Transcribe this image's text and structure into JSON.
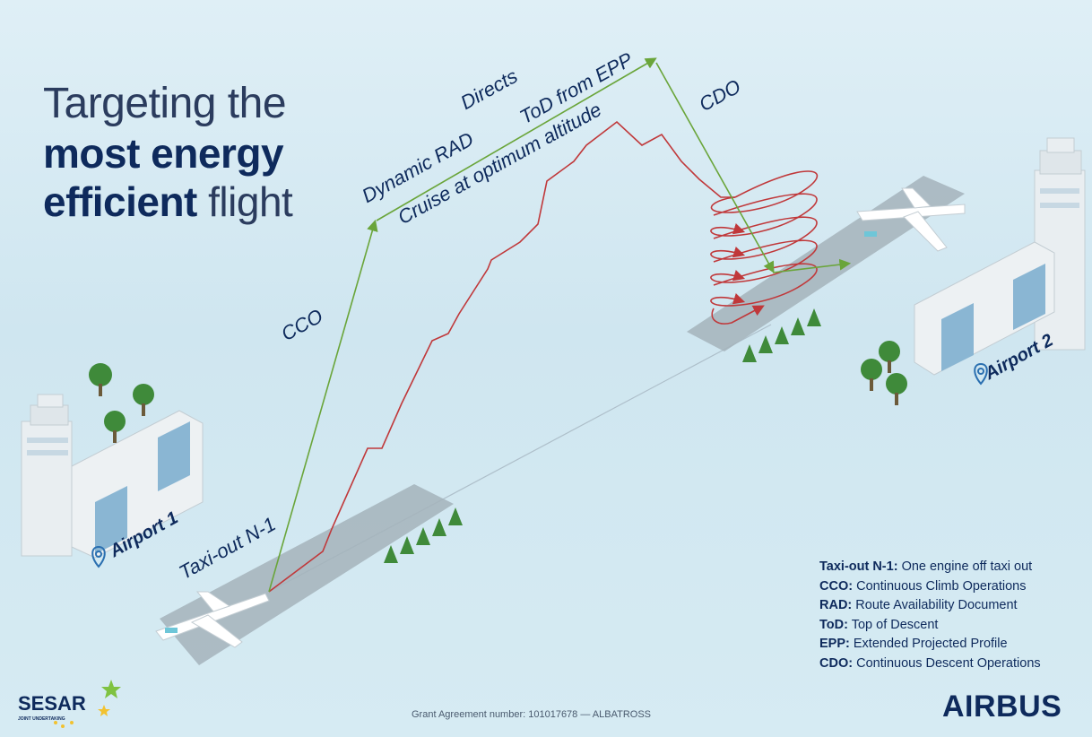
{
  "title": {
    "line1": "Targeting the",
    "line2": "most energy",
    "line3_bold": "efficient",
    "line3_light": "flight"
  },
  "route_labels": {
    "directs": "Directs",
    "tod": "ToD from EPP",
    "dynamic_rad": "Dynamic RAD",
    "cruise": "Cruise at optimum altitude",
    "cdo": "CDO",
    "cco": "CCO",
    "taxi_out": "Taxi-out N-1"
  },
  "airports": {
    "airport1": "Airport 1",
    "airport2": "Airport 2"
  },
  "legend": [
    {
      "term": "Taxi-out N-1:",
      "text": "One engine off taxi out"
    },
    {
      "term": "CCO:",
      "text": "Continuous Climb Operations"
    },
    {
      "term": "RAD:",
      "text": "Route Availability Document"
    },
    {
      "term": "ToD:",
      "text": "Top of Descent"
    },
    {
      "term": "EPP:",
      "text": "Extended Projected Profile"
    },
    {
      "term": "CDO:",
      "text": "Continuous Descent Operations"
    }
  ],
  "footer": {
    "grant": "Grant Agreement number: 101017678 — ALBATROSS",
    "airbus": "AIRBUS",
    "sesar": "SESAR",
    "sesar_sub": "JOINT UNDERTAKING"
  },
  "colors": {
    "optimized_path": "#6aa53a",
    "conventional_path": "#c0383a",
    "text": "#0e2a5c",
    "runway": "#9aaab4"
  }
}
